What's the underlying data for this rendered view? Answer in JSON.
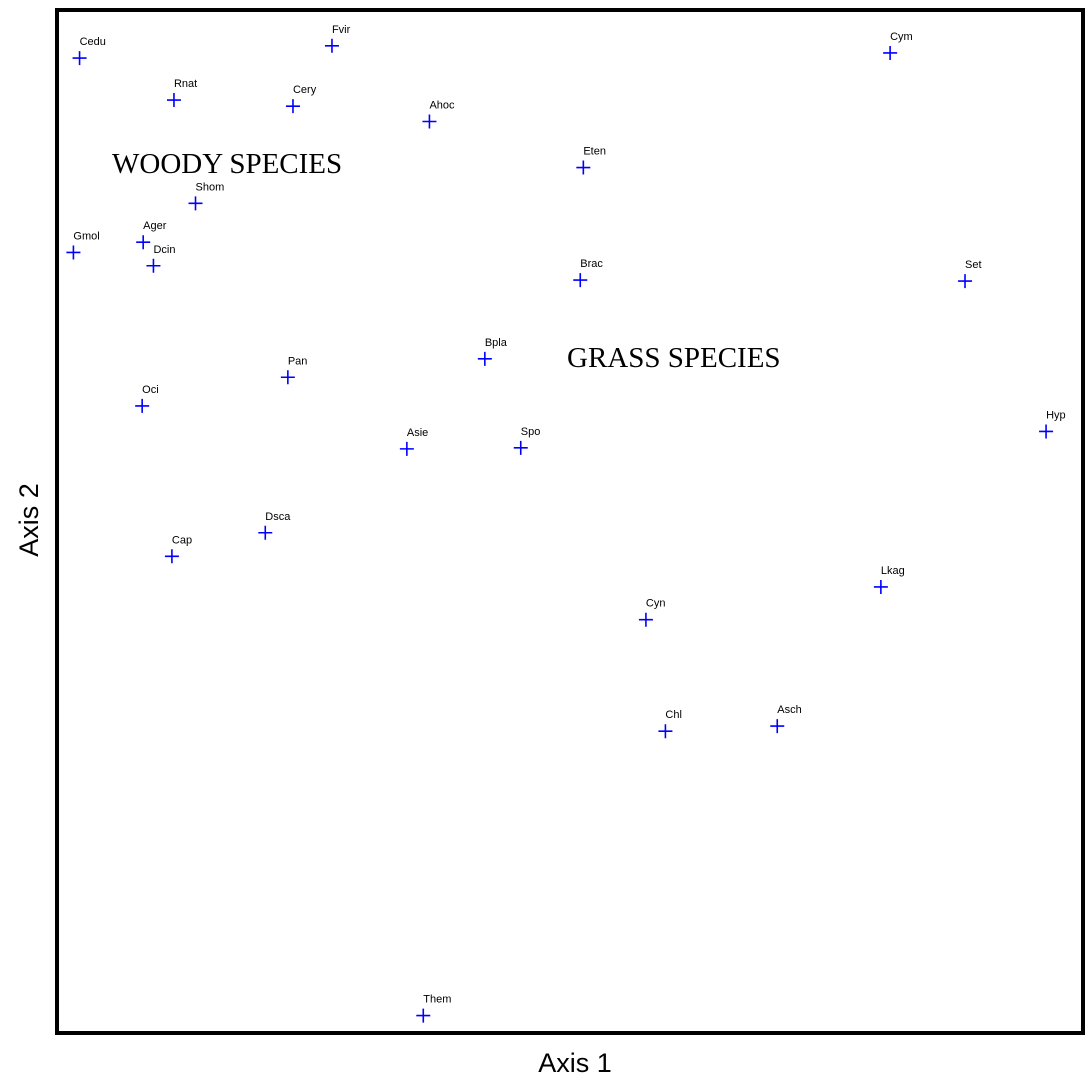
{
  "chart_data": {
    "type": "scatter",
    "xlabel": "Axis 1",
    "ylabel": "Axis 2",
    "annotations": [
      "WOODY SPECIES",
      "GRASS SPECIES"
    ],
    "color": "#0000ff",
    "xlim": [
      0,
      100
    ],
    "ylim": [
      0,
      100
    ],
    "labels": [
      "Cedu",
      "Fvir",
      "Cym",
      "Rnat",
      "Cery",
      "Ahoc",
      "Eten",
      "Shom",
      "Ager",
      "Gmol",
      "Dcin",
      "Brac",
      "Set",
      "Bpla",
      "Pan",
      "Oci",
      "Hyp",
      "Asie",
      "Spo",
      "Dsca",
      "Cap",
      "Lkag",
      "Cyn",
      "Chl",
      "Asch",
      "Them"
    ],
    "x": [
      2.2,
      26.8,
      81.2,
      11.4,
      23.0,
      36.3,
      51.3,
      13.5,
      8.4,
      1.6,
      9.4,
      51.0,
      88.5,
      41.7,
      22.5,
      8.3,
      96.4,
      34.1,
      45.2,
      20.3,
      11.2,
      80.3,
      57.4,
      59.3,
      70.2,
      35.7
    ],
    "values": [
      95.3,
      96.5,
      95.8,
      91.2,
      90.6,
      89.1,
      84.6,
      81.1,
      77.3,
      76.3,
      75.0,
      73.6,
      73.5,
      65.9,
      64.1,
      61.3,
      58.8,
      57.1,
      57.2,
      48.9,
      46.6,
      43.6,
      40.4,
      29.5,
      30.0,
      1.7
    ]
  }
}
